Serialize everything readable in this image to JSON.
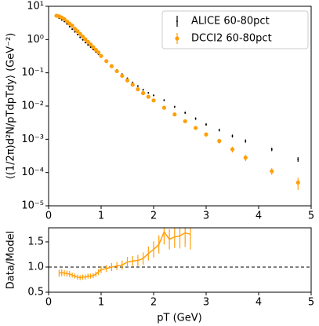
{
  "chart_data": [
    {
      "type": "scatter",
      "log_y": true,
      "ylabel": "⟨(1/2π)d²N/pTdpTdy⟩ (GeV⁻²)",
      "xlim": [
        0,
        5
      ],
      "xticks": [
        0,
        1,
        2,
        3,
        4,
        5
      ],
      "ylim": [
        1e-05,
        10
      ],
      "yticks": [
        {
          "value": 10,
          "label": "10¹"
        },
        {
          "value": 1,
          "label": "10⁰"
        },
        {
          "value": 0.1,
          "label": "10⁻¹"
        },
        {
          "value": 0.01,
          "label": "10⁻²"
        },
        {
          "value": 0.001,
          "label": "10⁻³"
        },
        {
          "value": 0.0001,
          "label": "10⁻⁴"
        },
        {
          "value": 1e-05,
          "label": "10⁻⁵"
        }
      ],
      "legend": "upper right",
      "series": [
        {
          "name": "ALICE 60-80pct",
          "color": "#000000",
          "x": [
            0.15,
            0.2,
            0.25,
            0.3,
            0.35,
            0.4,
            0.45,
            0.5,
            0.55,
            0.6,
            0.65,
            0.7,
            0.75,
            0.8,
            0.85,
            0.9,
            0.95,
            1.0,
            1.1,
            1.2,
            1.3,
            1.4,
            1.5,
            1.6,
            1.7,
            1.8,
            1.9,
            2.0,
            2.2,
            2.4,
            2.6,
            2.8,
            3.0,
            3.25,
            3.5,
            3.75,
            4.25,
            4.75
          ],
          "values": [
            5.0,
            4.4,
            3.9,
            3.5,
            2.95,
            2.45,
            2.05,
            1.7,
            1.41,
            1.17,
            0.98,
            0.81,
            0.69,
            0.59,
            0.5,
            0.43,
            0.36,
            0.32,
            0.234,
            0.17,
            0.123,
            0.091,
            0.068,
            0.051,
            0.04,
            0.031,
            0.025,
            0.021,
            0.015,
            0.0095,
            0.0063,
            0.0042,
            0.0028,
            0.0019,
            0.00126,
            0.00089,
            0.0005,
            0.00025
          ],
          "errors": [
            0.3,
            0.25,
            0.2,
            0.18,
            0.15,
            0.12,
            0.1,
            0.08,
            0.07,
            0.06,
            0.05,
            0.04,
            0.035,
            0.03,
            0.025,
            0.022,
            0.018,
            0.016,
            0.012,
            0.009,
            0.006,
            0.005,
            0.004,
            0.003,
            0.0025,
            0.002,
            0.0015,
            0.0013,
            0.001,
            0.0007,
            0.0005,
            0.00035,
            0.00025,
            0.00018,
            0.00013,
            0.0001,
            6e-05,
            4e-05
          ]
        },
        {
          "name": "DCCI2 60-80pct",
          "color": "#ff9f0a",
          "x": [
            0.15,
            0.2,
            0.25,
            0.3,
            0.35,
            0.4,
            0.45,
            0.5,
            0.55,
            0.6,
            0.65,
            0.7,
            0.75,
            0.8,
            0.85,
            0.9,
            0.95,
            1.0,
            1.1,
            1.2,
            1.3,
            1.4,
            1.5,
            1.6,
            1.7,
            1.8,
            1.9,
            2.0,
            2.2,
            2.4,
            2.6,
            2.8,
            3.0,
            3.25,
            3.5,
            3.75,
            4.25,
            4.75
          ],
          "values": [
            5.2,
            5.0,
            4.6,
            4.1,
            3.5,
            3.0,
            2.6,
            2.1,
            1.78,
            1.48,
            1.23,
            1.02,
            0.85,
            0.71,
            0.59,
            0.49,
            0.41,
            0.32,
            0.224,
            0.158,
            0.112,
            0.081,
            0.059,
            0.044,
            0.032,
            0.0245,
            0.019,
            0.0148,
            0.0089,
            0.0056,
            0.0035,
            0.0022,
            0.0014,
            0.00089,
            0.0005,
            0.00028,
            0.00011,
            5e-05
          ],
          "errors": [
            0.26,
            0.25,
            0.23,
            0.2,
            0.18,
            0.15,
            0.13,
            0.11,
            0.09,
            0.075,
            0.062,
            0.051,
            0.043,
            0.036,
            0.03,
            0.025,
            0.021,
            0.017,
            0.012,
            0.009,
            0.007,
            0.005,
            0.004,
            0.003,
            0.0023,
            0.0018,
            0.0015,
            0.0012,
            0.0008,
            0.0006,
            0.0004,
            0.00028,
            0.0002,
            0.00015,
            0.0001,
            6e-05,
            2.5e-05,
            2e-05
          ]
        }
      ]
    },
    {
      "type": "line",
      "xlabel": "pT (GeV)",
      "ylabel": "Data/Model",
      "xlim": [
        0,
        5
      ],
      "xticks": [
        0,
        1,
        2,
        3,
        4,
        5
      ],
      "ylim": [
        0.5,
        1.78
      ],
      "yticks": [
        {
          "value": 0.5,
          "label": "0.5"
        },
        {
          "value": 1,
          "label": "1.0"
        },
        {
          "value": 1.5,
          "label": "1.5"
        }
      ],
      "hline": 1,
      "color": "#ff9f0a",
      "x": [
        0.2,
        0.25,
        0.3,
        0.35,
        0.4,
        0.45,
        0.5,
        0.55,
        0.6,
        0.65,
        0.7,
        0.75,
        0.8,
        0.85,
        0.9,
        0.95,
        1.0,
        1.1,
        1.2,
        1.3,
        1.4,
        1.5,
        1.6,
        1.7,
        1.8,
        1.9,
        2.0,
        2.1,
        2.2,
        2.3,
        2.4,
        2.5,
        2.6,
        2.7
      ],
      "values": [
        0.88,
        0.89,
        0.88,
        0.87,
        0.86,
        0.84,
        0.82,
        0.8,
        0.79,
        0.8,
        0.8,
        0.82,
        0.82,
        0.83,
        0.86,
        0.9,
        0.95,
        0.97,
        1.0,
        1.02,
        1.04,
        1.1,
        1.12,
        1.13,
        1.17,
        1.27,
        1.35,
        1.45,
        1.7,
        1.55,
        1.6,
        1.62,
        1.68,
        1.65
      ],
      "errors": [
        0.07,
        0.07,
        0.06,
        0.06,
        0.06,
        0.05,
        0.05,
        0.05,
        0.05,
        0.05,
        0.05,
        0.05,
        0.05,
        0.05,
        0.05,
        0.06,
        0.07,
        0.07,
        0.08,
        0.08,
        0.09,
        0.1,
        0.1,
        0.11,
        0.12,
        0.14,
        0.16,
        0.18,
        0.25,
        0.2,
        0.22,
        0.25,
        0.28,
        0.3
      ]
    }
  ]
}
